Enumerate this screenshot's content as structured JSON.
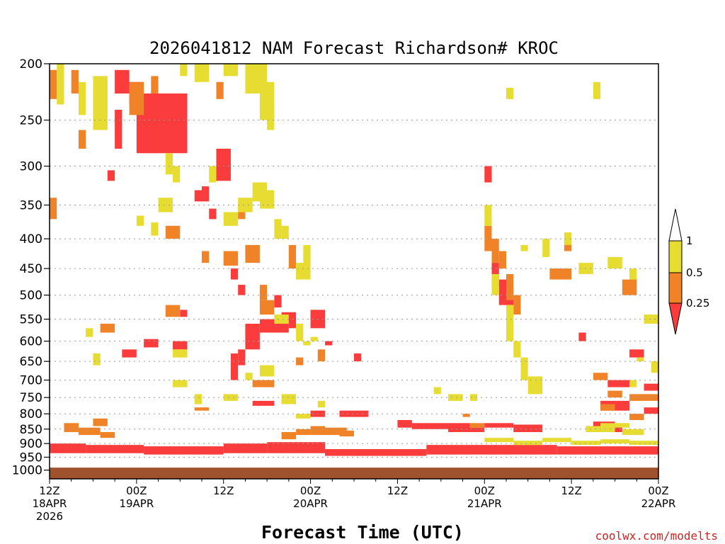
{
  "chart_data": {
    "type": "heatmap",
    "title": "2026041812 NAM Forecast Richardson# KROC",
    "xlabel": "Forecast Time (UTC)",
    "ylabel": "",
    "y_scale": "log-pressure, inverted",
    "ylim": [
      1035,
      200
    ],
    "xlim_hours": [
      0,
      84
    ],
    "y_ticks": [
      "200",
      "250",
      "300",
      "350",
      "400",
      "450",
      "500",
      "550",
      "600",
      "650",
      "700",
      "750",
      "800",
      "850",
      "900",
      "950",
      "1000"
    ],
    "x_ticks": [
      {
        "hour": 0,
        "time": "12Z",
        "date": "18APR",
        "year": "2026"
      },
      {
        "hour": 12,
        "time": "00Z",
        "date": "19APR",
        "year": ""
      },
      {
        "hour": 24,
        "time": "12Z",
        "date": "",
        "year": ""
      },
      {
        "hour": 36,
        "time": "00Z",
        "date": "20APR",
        "year": ""
      },
      {
        "hour": 48,
        "time": "12Z",
        "date": "",
        "year": ""
      },
      {
        "hour": 60,
        "time": "00Z",
        "date": "21APR",
        "year": ""
      },
      {
        "hour": 72,
        "time": "12Z",
        "date": "",
        "year": ""
      },
      {
        "hour": 84,
        "time": "00Z",
        "date": "22APR",
        "year": ""
      }
    ],
    "colorbar": {
      "levels": [
        "1",
        "0.5",
        "0.25"
      ],
      "bins": [
        {
          "range": "> 1",
          "color": "#ffffff"
        },
        {
          "range": "0.5-1",
          "color": "#e6dc32"
        },
        {
          "range": "0.25-0.5",
          "color": "#f08228"
        },
        {
          "range": "< 0.25",
          "color": "#fa3c3c"
        }
      ]
    },
    "surface_color": "#a0522d",
    "colors": {
      "yellow": "#e6dc32",
      "orange": "#f08228",
      "red": "#fa3c3c"
    },
    "series": [
      {
        "name": "Ri < 0.25",
        "cells": [
          [
            0,
            900,
            5,
            935
          ],
          [
            5,
            905,
            13,
            935
          ],
          [
            13,
            910,
            24,
            940
          ],
          [
            24,
            900,
            30,
            935
          ],
          [
            30,
            895,
            38,
            935
          ],
          [
            38,
            920,
            52,
            945
          ],
          [
            52,
            905,
            70,
            940
          ],
          [
            70,
            910,
            84,
            940
          ],
          [
            9,
            205,
            11,
            225
          ],
          [
            11,
            215,
            13,
            235
          ],
          [
            9,
            240,
            10,
            280
          ],
          [
            12,
            225,
            19,
            285
          ],
          [
            14,
            240,
            15,
            250
          ],
          [
            8,
            305,
            9,
            318
          ],
          [
            23,
            280,
            25,
            318
          ],
          [
            20,
            330,
            21,
            345
          ],
          [
            21,
            325,
            22,
            345
          ],
          [
            22,
            355,
            23,
            370
          ],
          [
            18,
            530,
            19,
            545
          ],
          [
            25,
            450,
            26,
            470
          ],
          [
            26,
            480,
            27,
            500
          ],
          [
            27,
            560,
            29,
            620
          ],
          [
            29,
            550,
            33,
            580
          ],
          [
            32,
            535,
            34,
            560
          ],
          [
            31,
            500,
            32,
            525
          ],
          [
            36,
            530,
            38,
            570
          ],
          [
            25,
            630,
            26,
            700
          ],
          [
            26,
            620,
            27,
            660
          ],
          [
            17,
            600,
            19,
            620
          ],
          [
            13,
            595,
            15,
            615
          ],
          [
            38,
            600,
            39,
            610
          ],
          [
            42,
            630,
            43,
            650
          ],
          [
            33,
            560,
            34,
            570
          ],
          [
            28,
            760,
            31,
            775
          ],
          [
            10,
            620,
            12,
            640
          ],
          [
            36,
            790,
            38,
            810
          ],
          [
            40,
            790,
            44,
            810
          ],
          [
            60,
            300,
            61,
            320
          ],
          [
            61,
            440,
            62,
            480
          ],
          [
            62,
            470,
            63,
            520
          ],
          [
            63,
            490,
            64,
            520
          ],
          [
            73,
            580,
            74,
            600
          ],
          [
            77,
            700,
            80,
            720
          ],
          [
            82,
            710,
            84,
            730
          ],
          [
            80,
            620,
            82,
            640
          ],
          [
            76,
            760,
            80,
            790
          ],
          [
            82,
            780,
            84,
            800
          ],
          [
            48,
            820,
            50,
            845
          ],
          [
            50,
            830,
            58,
            850
          ],
          [
            55,
            845,
            60,
            860
          ],
          [
            60,
            830,
            64,
            845
          ],
          [
            64,
            835,
            68,
            860
          ],
          [
            75,
            825,
            78,
            845
          ],
          [
            74,
            840,
            79,
            860
          ]
        ]
      },
      {
        "name": "0.25 < Ri < 0.5",
        "cells": [
          [
            0,
            205,
            1,
            230
          ],
          [
            3,
            205,
            4,
            225
          ],
          [
            4,
            260,
            5,
            280
          ],
          [
            11,
            215,
            13,
            245
          ],
          [
            14,
            210,
            15,
            225
          ],
          [
            23,
            215,
            24,
            230
          ],
          [
            0,
            340,
            1,
            370
          ],
          [
            16,
            380,
            18,
            400
          ],
          [
            16,
            520,
            18,
            545
          ],
          [
            7,
            560,
            9,
            580
          ],
          [
            28,
            700,
            31,
            720
          ],
          [
            20,
            780,
            22,
            790
          ],
          [
            26,
            350,
            27,
            370
          ],
          [
            21,
            420,
            22,
            440
          ],
          [
            24,
            420,
            26,
            445
          ],
          [
            27,
            410,
            29,
            440
          ],
          [
            33,
            410,
            34,
            450
          ],
          [
            29,
            510,
            31,
            540
          ],
          [
            29,
            480,
            30,
            510
          ],
          [
            34,
            640,
            35,
            660
          ],
          [
            37,
            620,
            38,
            650
          ],
          [
            36,
            840,
            38,
            870
          ],
          [
            38,
            845,
            41,
            870
          ],
          [
            40,
            855,
            42,
            875
          ],
          [
            34,
            850,
            36,
            870
          ],
          [
            32,
            860,
            34,
            885
          ],
          [
            2,
            830,
            4,
            860
          ],
          [
            4,
            845,
            7,
            870
          ],
          [
            6,
            815,
            8,
            840
          ],
          [
            7,
            860,
            9,
            880
          ],
          [
            57,
            800,
            58,
            810
          ],
          [
            58,
            830,
            60,
            845
          ],
          [
            60,
            380,
            61,
            420
          ],
          [
            61,
            400,
            62,
            440
          ],
          [
            62,
            420,
            63,
            450
          ],
          [
            63,
            460,
            64,
            510
          ],
          [
            64,
            500,
            65,
            540
          ],
          [
            69,
            450,
            72,
            470
          ],
          [
            79,
            470,
            81,
            500
          ],
          [
            71,
            400,
            72,
            420
          ],
          [
            75,
            680,
            77,
            700
          ],
          [
            77,
            730,
            79,
            750
          ],
          [
            80,
            740,
            82,
            760
          ],
          [
            76,
            770,
            78,
            790
          ],
          [
            80,
            800,
            82,
            820
          ],
          [
            82,
            740,
            84,
            760
          ]
        ]
      },
      {
        "name": "0.5 < Ri < 1",
        "cells": [
          [
            1,
            200,
            2,
            235
          ],
          [
            4,
            215,
            5,
            245
          ],
          [
            6,
            210,
            8,
            260
          ],
          [
            18,
            200,
            19,
            210
          ],
          [
            20,
            200,
            22,
            215
          ],
          [
            24,
            200,
            26,
            210
          ],
          [
            27,
            200,
            30,
            225
          ],
          [
            29,
            215,
            31,
            250
          ],
          [
            30,
            240,
            31,
            260
          ],
          [
            28,
            320,
            30,
            345
          ],
          [
            26,
            340,
            28,
            360
          ],
          [
            29,
            330,
            31,
            355
          ],
          [
            16,
            285,
            17,
            310
          ],
          [
            17,
            300,
            18,
            320
          ],
          [
            15,
            340,
            17,
            360
          ],
          [
            22,
            300,
            23,
            320
          ],
          [
            24,
            360,
            26,
            380
          ],
          [
            12,
            365,
            13,
            380
          ],
          [
            14,
            375,
            15,
            395
          ],
          [
            31,
            370,
            32,
            400
          ],
          [
            32,
            380,
            33,
            400
          ],
          [
            34,
            440,
            36,
            470
          ],
          [
            35,
            410,
            36,
            460
          ],
          [
            31,
            540,
            33,
            560
          ],
          [
            34,
            560,
            35,
            600
          ],
          [
            35,
            600,
            36,
            610
          ],
          [
            36,
            590,
            37,
            600
          ],
          [
            27,
            680,
            28,
            700
          ],
          [
            29,
            660,
            31,
            690
          ],
          [
            17,
            620,
            19,
            640
          ],
          [
            5,
            570,
            6,
            590
          ],
          [
            6,
            630,
            7,
            660
          ],
          [
            17,
            700,
            19,
            720
          ],
          [
            20,
            740,
            21,
            770
          ],
          [
            24,
            740,
            26,
            760
          ],
          [
            32,
            740,
            34,
            770
          ],
          [
            34,
            800,
            36,
            815
          ],
          [
            37,
            760,
            38,
            780
          ],
          [
            53,
            720,
            54,
            740
          ],
          [
            55,
            740,
            57,
            760
          ],
          [
            58,
            740,
            59,
            760
          ],
          [
            60,
            350,
            61,
            380
          ],
          [
            61,
            460,
            62,
            500
          ],
          [
            63,
            520,
            64,
            600
          ],
          [
            64,
            600,
            65,
            640
          ],
          [
            65,
            640,
            66,
            700
          ],
          [
            66,
            690,
            68,
            740
          ],
          [
            63,
            220,
            64,
            230
          ],
          [
            65,
            410,
            66,
            420
          ],
          [
            68,
            400,
            69,
            430
          ],
          [
            71,
            390,
            72,
            410
          ],
          [
            73,
            440,
            75,
            460
          ],
          [
            77,
            430,
            79,
            450
          ],
          [
            80,
            450,
            81,
            470
          ],
          [
            82,
            540,
            84,
            560
          ],
          [
            81,
            640,
            82,
            650
          ],
          [
            83,
            650,
            84,
            680
          ],
          [
            74,
            840,
            78,
            860
          ],
          [
            76,
            830,
            80,
            845
          ],
          [
            79,
            850,
            82,
            870
          ],
          [
            80,
            700,
            81,
            720
          ],
          [
            60,
            880,
            64,
            895
          ],
          [
            64,
            890,
            68,
            905
          ],
          [
            68,
            880,
            72,
            895
          ],
          [
            72,
            890,
            76,
            905
          ],
          [
            76,
            885,
            80,
            900
          ],
          [
            80,
            890,
            84,
            905
          ],
          [
            75,
            215,
            76,
            230
          ]
        ]
      }
    ],
    "watermark": "coolwx.com/modelts"
  }
}
